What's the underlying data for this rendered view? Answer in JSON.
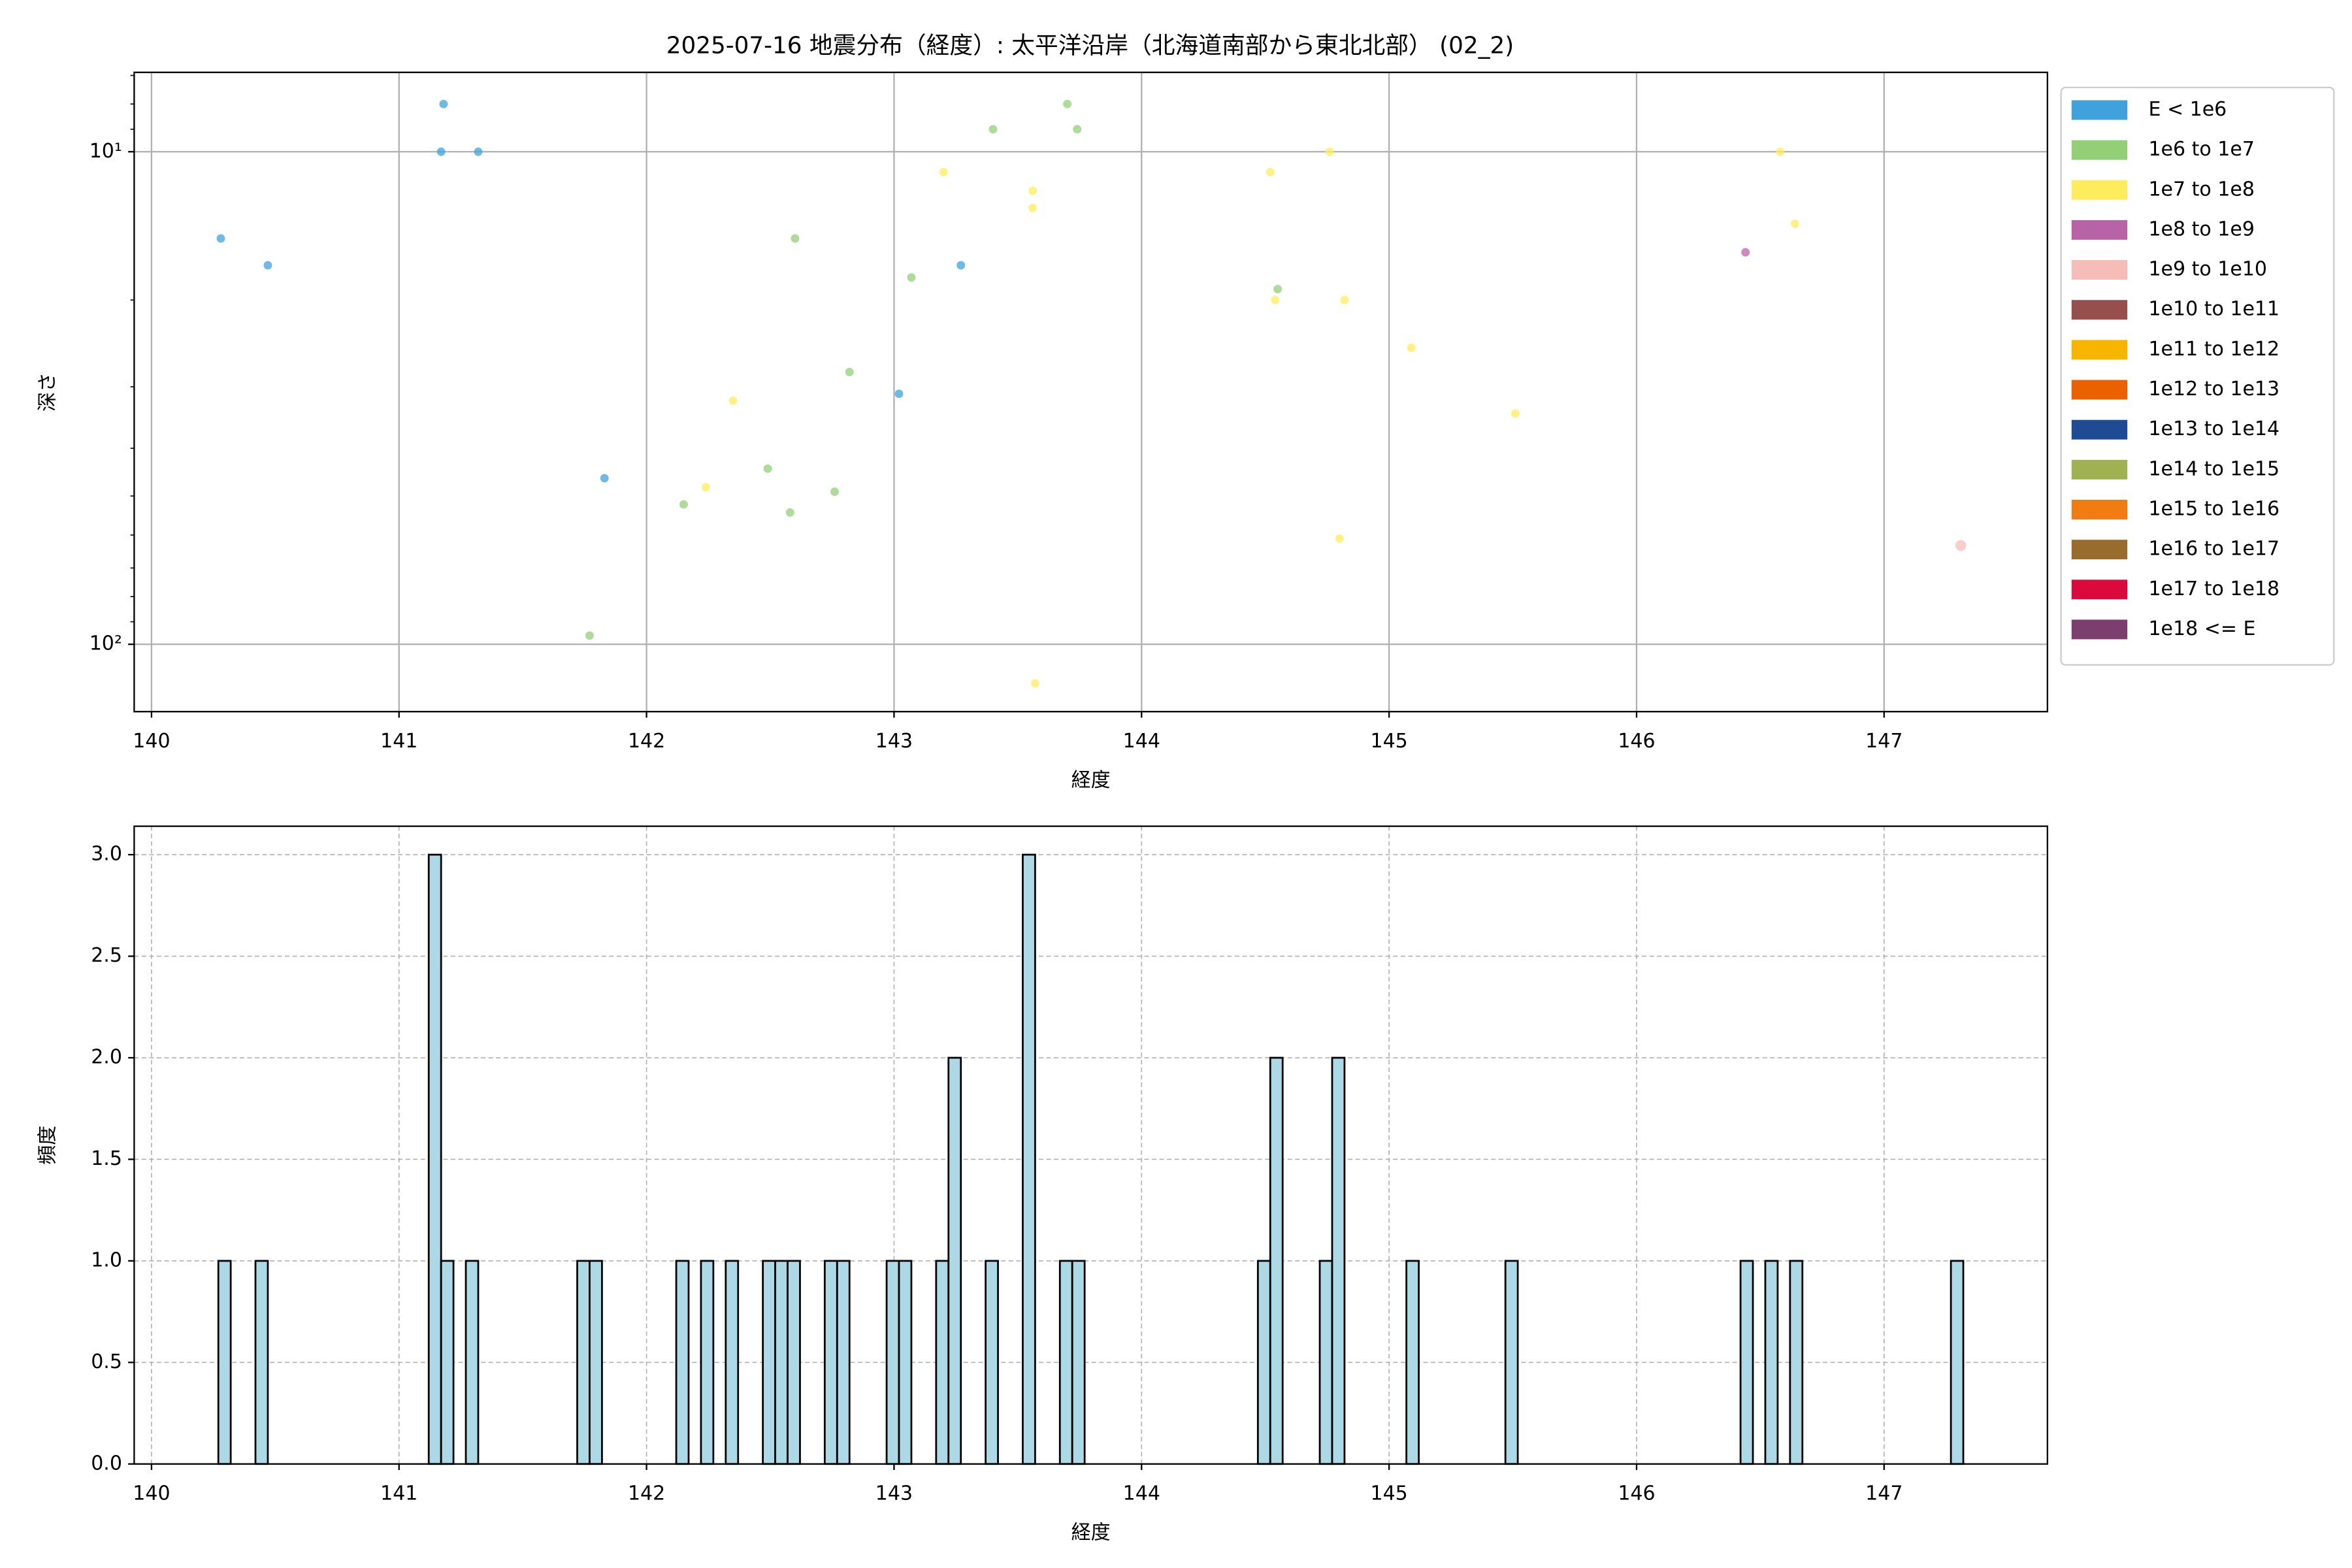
{
  "chart_data": [
    {
      "type": "scatter",
      "title": "2025-07-16 地震分布（経度）: 太平洋沿岸（北海道南部から東北北部） (02_2)",
      "xlabel": "経度",
      "ylabel": "深さ",
      "xlim": [
        139.93,
        147.66
      ],
      "xticks": [
        140,
        141,
        142,
        143,
        144,
        145,
        146,
        147
      ],
      "ylim": [
        6.9,
        137
      ],
      "yscale": "log",
      "invert_y": true,
      "yticks": [
        {
          "value": 10,
          "label": "10¹"
        },
        {
          "value": 100,
          "label": "10²"
        }
      ],
      "yminor": [
        7,
        8,
        9,
        20,
        30,
        40,
        50,
        60,
        70,
        80,
        90
      ],
      "grid": true,
      "legend": "outside-right",
      "alpha": 0.75,
      "series": [
        {
          "name": "E < 1e6",
          "color": "#3fa2dc",
          "x": [
            140.28,
            140.47,
            141.18,
            141.17,
            141.32,
            141.83,
            143.02,
            143.27
          ],
          "values": [
            15,
            17,
            8,
            10,
            10,
            46,
            31,
            17
          ]
        },
        {
          "name": "1e6 to 1e7",
          "color": "#93cf77",
          "x": [
            143.4,
            143.7,
            143.74,
            142.6,
            143.07,
            142.82,
            142.49,
            142.15,
            142.58,
            142.76,
            141.77,
            144.55
          ],
          "values": [
            9,
            8,
            9,
            15,
            18,
            28,
            44,
            52,
            54,
            49,
            96,
            19
          ]
        },
        {
          "name": "1e7 to 1e8",
          "color": "#ffec5c",
          "x": [
            143.2,
            143.56,
            143.56,
            142.35,
            142.24,
            143.57,
            144.52,
            144.76,
            144.54,
            144.82,
            145.09,
            145.51,
            144.8,
            146.58,
            146.64
          ],
          "values": [
            11,
            12,
            13,
            32,
            48,
            120,
            11,
            10,
            20,
            20,
            25,
            34,
            61,
            10,
            14
          ]
        },
        {
          "name": "1e8 to 1e9",
          "color": "#b863a7",
          "x": [
            146.44
          ],
          "values": [
            16
          ]
        },
        {
          "name": "1e9 to 1e10",
          "color": "#f5bcb8",
          "x": [
            147.31
          ],
          "values": [
            63
          ]
        },
        {
          "name": "1e10 to 1e11",
          "color": "#964f4c",
          "x": [],
          "values": []
        },
        {
          "name": "1e11 to 1e12",
          "color": "#f7b500",
          "x": [],
          "values": []
        },
        {
          "name": "1e12 to 1e13",
          "color": "#eb6100",
          "x": [],
          "values": []
        },
        {
          "name": "1e13 to 1e14",
          "color": "#1e4b93",
          "x": [],
          "values": []
        },
        {
          "name": "1e14 to 1e15",
          "color": "#9fb153",
          "x": [],
          "values": []
        },
        {
          "name": "1e15 to 1e16",
          "color": "#f07c12",
          "x": [],
          "values": []
        },
        {
          "name": "1e16 to 1e17",
          "color": "#986c2c",
          "x": [],
          "values": []
        },
        {
          "name": "1e17 to 1e18",
          "color": "#dc0a3c",
          "x": [],
          "values": []
        },
        {
          "name": "1e18 <= E",
          "color": "#7b3e6f",
          "x": [],
          "values": []
        }
      ]
    },
    {
      "type": "histogram",
      "xlabel": "経度",
      "ylabel": "頻度",
      "xlim": [
        139.93,
        147.66
      ],
      "xticks": [
        140,
        141,
        142,
        143,
        144,
        145,
        146,
        147
      ],
      "ylim": [
        0,
        3.14
      ],
      "yticks": [
        {
          "value": 0,
          "label": "0.0"
        },
        {
          "value": 0.5,
          "label": "0.5"
        },
        {
          "value": 1,
          "label": "1.0"
        },
        {
          "value": 1.5,
          "label": "1.5"
        },
        {
          "value": 2,
          "label": "2.0"
        },
        {
          "value": 2.5,
          "label": "2.5"
        },
        {
          "value": 3,
          "label": "3.0"
        }
      ],
      "grid": true,
      "grid_style": "dashed",
      "color": "#add8e6",
      "edgecolor": "#000000",
      "bins": [
        140.27,
        140.32,
        140.37,
        140.42,
        140.47,
        140.52,
        140.57,
        140.62,
        140.67,
        140.72,
        140.77,
        140.82,
        140.87,
        140.92,
        140.97,
        141.02,
        141.07,
        141.12,
        141.17,
        141.22,
        141.27,
        141.32,
        141.37,
        141.42,
        141.47,
        141.52,
        141.57,
        141.62,
        141.67,
        141.72,
        141.77,
        141.82,
        141.87,
        141.92,
        141.97,
        142.02,
        142.07,
        142.12,
        142.17,
        142.22,
        142.27,
        142.32,
        142.37,
        142.42,
        142.47,
        142.52,
        142.57,
        142.62,
        142.67,
        142.72,
        142.77,
        142.82,
        142.87,
        142.92,
        142.97,
        143.02,
        143.07,
        143.12,
        143.17,
        143.22,
        143.27,
        143.32,
        143.37,
        143.42,
        143.47,
        143.52,
        143.57,
        143.62,
        143.67,
        143.72,
        143.77,
        143.82,
        143.87,
        143.92,
        143.97,
        144.02,
        144.07,
        144.12,
        144.17,
        144.22,
        144.27,
        144.32,
        144.37,
        144.42,
        144.47,
        144.52,
        144.57,
        144.62,
        144.67,
        144.72,
        144.77,
        144.82,
        144.87,
        144.92,
        144.97,
        145.02,
        145.07,
        145.12,
        145.17,
        145.22,
        145.27,
        145.32,
        145.37,
        145.42,
        145.47,
        145.52,
        145.57,
        145.62,
        145.67,
        145.72,
        145.77,
        145.82,
        145.87,
        145.92,
        145.97,
        146.02,
        146.07,
        146.12,
        146.17,
        146.22,
        146.27,
        146.32,
        146.37,
        146.42,
        146.47,
        146.52,
        146.57,
        146.62,
        146.67,
        146.72,
        146.77,
        146.82,
        146.87,
        146.92,
        146.97,
        147.02,
        147.07,
        147.12,
        147.17,
        147.22,
        147.27,
        147.32
      ],
      "counts": [
        1,
        0,
        0,
        1,
        0,
        0,
        0,
        0,
        0,
        0,
        0,
        0,
        0,
        0,
        0,
        0,
        0,
        3,
        1,
        0,
        1,
        0,
        0,
        0,
        0,
        0,
        0,
        0,
        0,
        1,
        1,
        0,
        0,
        0,
        0,
        0,
        0,
        1,
        0,
        1,
        0,
        1,
        0,
        0,
        1,
        1,
        1,
        0,
        0,
        1,
        1,
        0,
        0,
        0,
        1,
        1,
        0,
        0,
        1,
        2,
        0,
        0,
        1,
        0,
        0,
        3,
        0,
        0,
        1,
        1,
        0,
        0,
        0,
        0,
        0,
        0,
        0,
        0,
        0,
        0,
        0,
        0,
        0,
        0,
        1,
        2,
        0,
        0,
        0,
        1,
        2,
        0,
        0,
        0,
        0,
        0,
        1,
        0,
        0,
        0,
        0,
        0,
        0,
        0,
        1,
        0,
        0,
        0,
        0,
        0,
        0,
        0,
        0,
        0,
        0,
        0,
        0,
        0,
        0,
        0,
        0,
        0,
        0,
        1,
        0,
        1,
        0,
        1,
        0,
        0,
        0,
        0,
        0,
        0,
        0,
        0,
        0,
        0,
        0,
        0,
        1
      ]
    }
  ]
}
